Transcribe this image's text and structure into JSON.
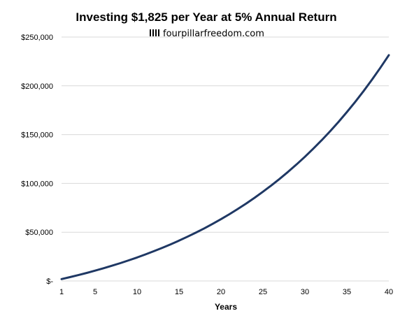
{
  "colors": {
    "series": "#1f3864",
    "grid": "#d9d9d9",
    "text": "#000000"
  },
  "chart_data": {
    "type": "line",
    "title": "Investing $1,825 per Year at 5% Annual Return",
    "subtitle": "fourpillarfreedom.com",
    "subtitle_icon": "four-pillars-logo-icon",
    "xlabel": "Years",
    "ylabel": "",
    "xlim": [
      1,
      40
    ],
    "ylim": [
      0,
      250000
    ],
    "grid": "horizontal",
    "legend": "none",
    "x_ticks": [
      1,
      5,
      10,
      15,
      20,
      25,
      30,
      35,
      40
    ],
    "y_ticks": [
      {
        "value": 0,
        "label": "$-"
      },
      {
        "value": 50000,
        "label": "$50,000"
      },
      {
        "value": 100000,
        "label": "$100,000"
      },
      {
        "value": 150000,
        "label": "$150,000"
      },
      {
        "value": 200000,
        "label": "$200,000"
      },
      {
        "value": 250000,
        "label": "$250,000"
      }
    ],
    "series": [
      {
        "x": [
          1,
          2,
          3,
          4,
          5,
          6,
          7,
          8,
          9,
          10,
          11,
          12,
          13,
          14,
          15,
          16,
          17,
          18,
          19,
          20,
          21,
          22,
          23,
          24,
          25,
          26,
          27,
          28,
          29,
          30,
          31,
          32,
          33,
          34,
          35,
          36,
          37,
          38,
          39,
          40
        ],
        "values": [
          1916,
          3929,
          6041,
          8259,
          10588,
          13033,
          15601,
          18297,
          21128,
          24100,
          27221,
          30498,
          33939,
          37552,
          41345,
          45329,
          49511,
          53903,
          58514,
          63356,
          68439,
          73777,
          79382,
          85267,
          91446,
          97935,
          104747,
          111901,
          119411,
          127298,
          135578,
          144272,
          153402,
          162988,
          173053,
          183622,
          194719,
          206370,
          218605,
          231451
        ]
      }
    ]
  }
}
